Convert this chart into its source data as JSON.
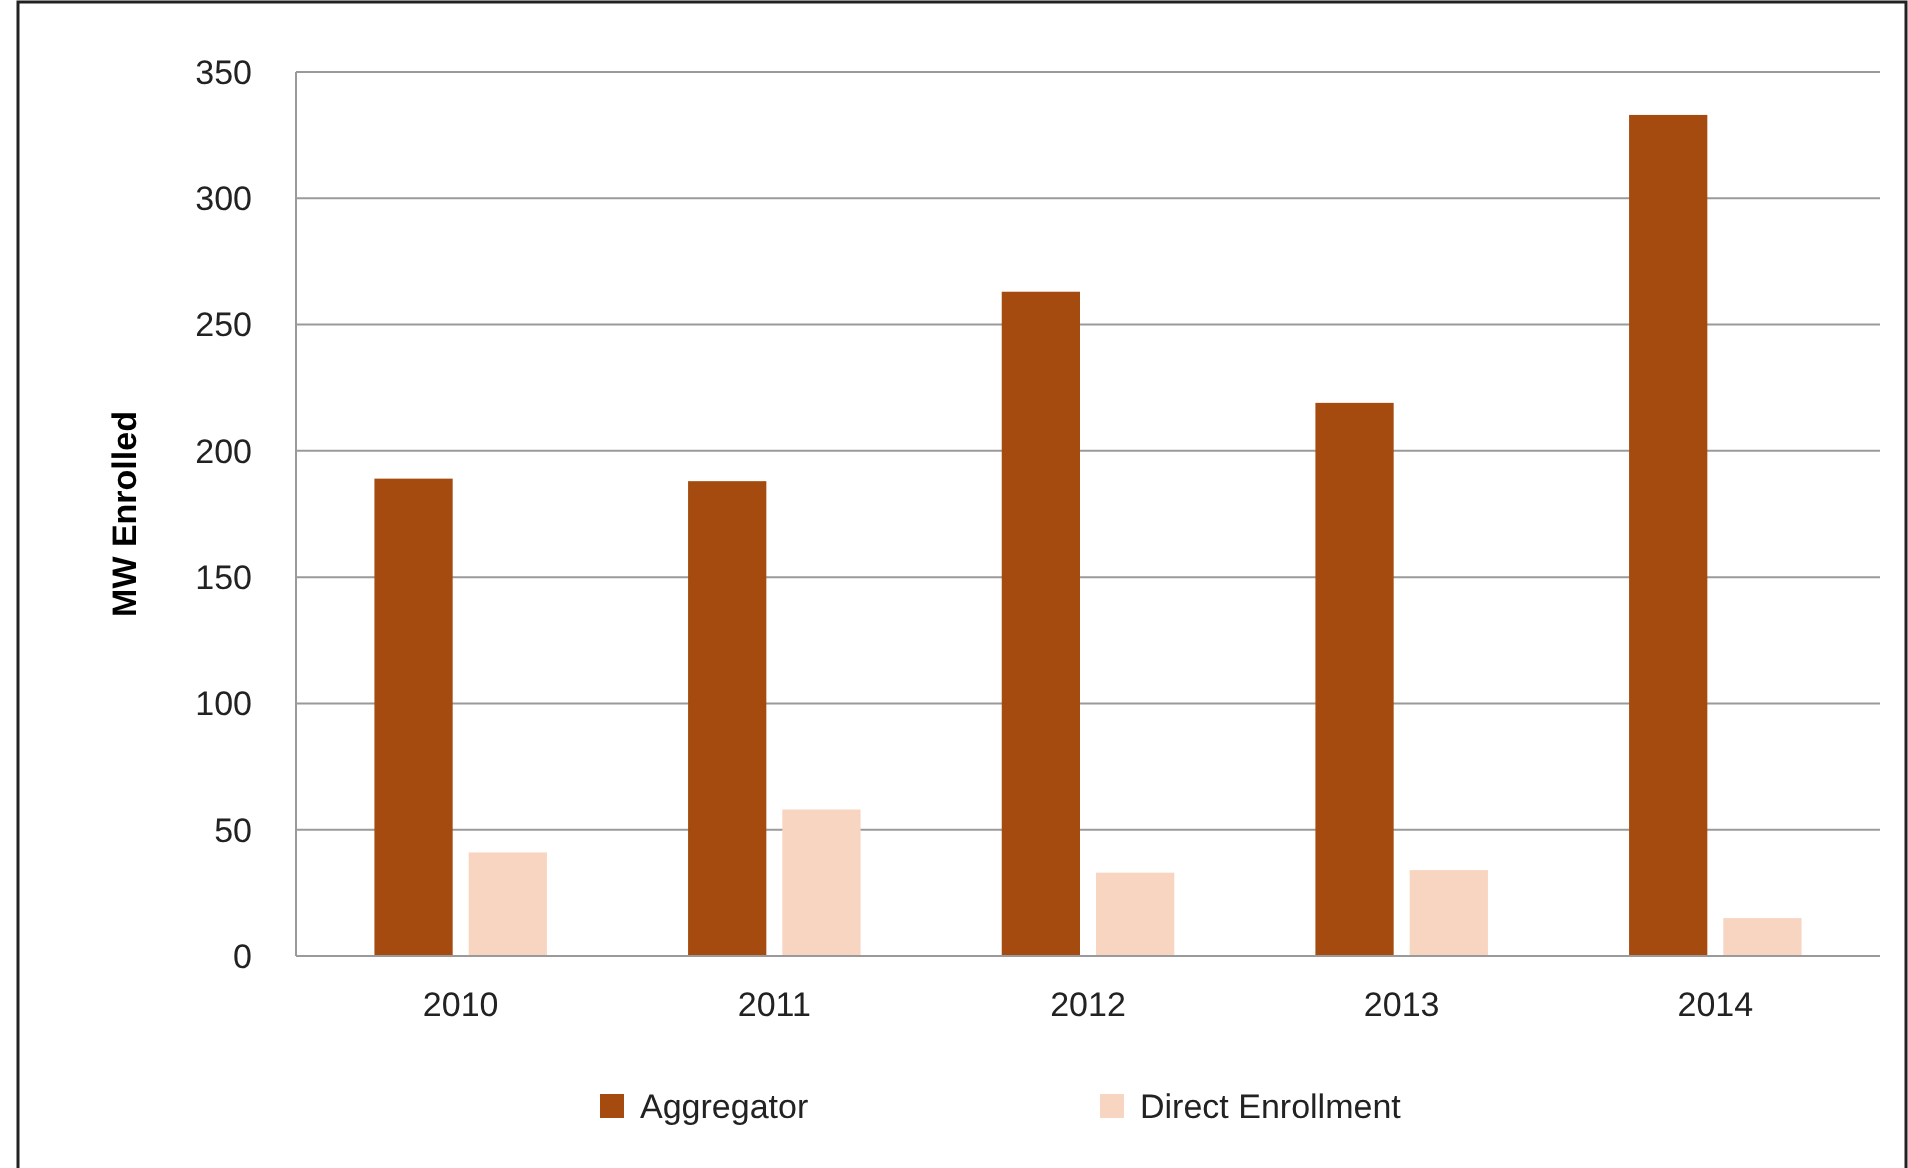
{
  "chart_data": {
    "type": "bar",
    "ylabel": "MW Enrolled",
    "categories": [
      "2010",
      "2011",
      "2012",
      "2013",
      "2014"
    ],
    "series": [
      {
        "name": "Aggregator",
        "color": "#a54b0f",
        "values": [
          189,
          188,
          263,
          219,
          333
        ]
      },
      {
        "name": "Direct Enrollment",
        "color": "#f8d5c0",
        "values": [
          41,
          58,
          33,
          34,
          15
        ]
      }
    ],
    "ylim": [
      0,
      350
    ],
    "yticks": [
      0,
      50,
      100,
      150,
      200,
      250,
      300,
      350
    ],
    "grid": "y",
    "legend": "bottom"
  }
}
